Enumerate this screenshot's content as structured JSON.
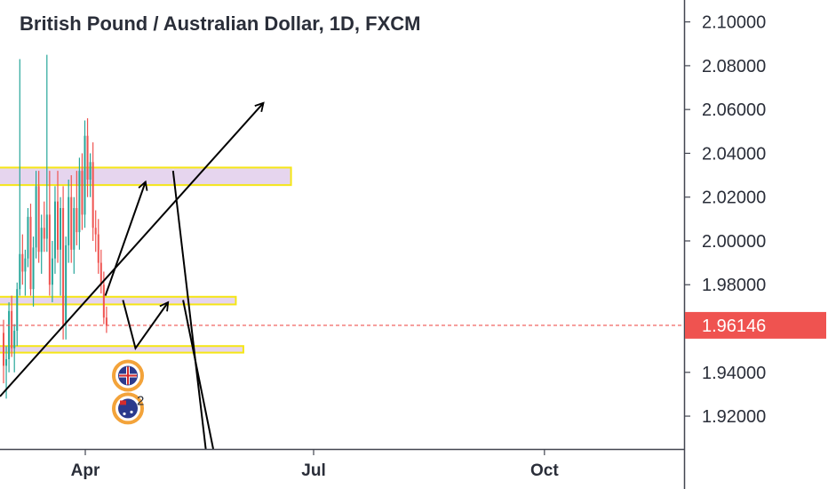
{
  "chart_data": {
    "type": "candlestick",
    "title": "British Pound / Australian Dollar, 1D, FXCM",
    "ylim": [
      1.905,
      2.11
    ],
    "yticks": [
      {
        "value": 2.1,
        "label": "2.10000"
      },
      {
        "value": 2.08,
        "label": "2.08000"
      },
      {
        "value": 2.06,
        "label": "2.06000"
      },
      {
        "value": 2.04,
        "label": "2.04000"
      },
      {
        "value": 2.02,
        "label": "2.02000"
      },
      {
        "value": 2.0,
        "label": "2.00000"
      },
      {
        "value": 1.98,
        "label": "1.98000"
      },
      {
        "value": 1.94,
        "label": "1.94000"
      },
      {
        "value": 1.92,
        "label": "1.92000"
      }
    ],
    "xticks": [
      "Apr",
      "Jul",
      "Oct"
    ],
    "current_price": {
      "value": 1.96146,
      "label": "1.96146",
      "color": "#ef5350"
    },
    "grid": false,
    "colors": {
      "up": "#26a69a",
      "down": "#ef5350",
      "zone_fill": "#e6d5ee",
      "zone_border": "#f5e616",
      "drawing": "#000000"
    },
    "candles": [
      {
        "o": 1.958,
        "h": 1.964,
        "l": 1.935,
        "c": 1.943
      },
      {
        "o": 1.943,
        "h": 1.952,
        "l": 1.928,
        "c": 1.946
      },
      {
        "o": 1.946,
        "h": 1.972,
        "l": 1.94,
        "c": 1.968
      },
      {
        "o": 1.968,
        "h": 1.975,
        "l": 1.947,
        "c": 1.951
      },
      {
        "o": 1.951,
        "h": 1.962,
        "l": 1.94,
        "c": 1.959
      },
      {
        "o": 1.959,
        "h": 1.981,
        "l": 1.952,
        "c": 1.978
      },
      {
        "o": 1.978,
        "h": 2.083,
        "l": 1.975,
        "c": 1.994
      },
      {
        "o": 1.994,
        "h": 2.003,
        "l": 1.98,
        "c": 1.986
      },
      {
        "o": 1.986,
        "h": 1.996,
        "l": 1.975,
        "c": 1.992
      },
      {
        "o": 1.992,
        "h": 2.015,
        "l": 1.988,
        "c": 2.011
      },
      {
        "o": 2.011,
        "h": 2.017,
        "l": 1.975,
        "c": 1.978
      },
      {
        "o": 1.978,
        "h": 2.002,
        "l": 1.97,
        "c": 1.997
      },
      {
        "o": 1.997,
        "h": 2.032,
        "l": 1.992,
        "c": 2.025
      },
      {
        "o": 2.025,
        "h": 2.032,
        "l": 1.99,
        "c": 1.995
      },
      {
        "o": 1.995,
        "h": 2.012,
        "l": 1.985,
        "c": 2.006
      },
      {
        "o": 2.006,
        "h": 2.018,
        "l": 1.995,
        "c": 2.001
      },
      {
        "o": 2.001,
        "h": 2.085,
        "l": 1.995,
        "c": 2.012
      },
      {
        "o": 2.012,
        "h": 2.032,
        "l": 1.975,
        "c": 1.98
      },
      {
        "o": 1.98,
        "h": 2.0,
        "l": 1.972,
        "c": 1.992
      },
      {
        "o": 1.992,
        "h": 2.025,
        "l": 1.985,
        "c": 2.018
      },
      {
        "o": 2.018,
        "h": 2.032,
        "l": 1.99,
        "c": 1.996
      },
      {
        "o": 1.996,
        "h": 2.02,
        "l": 1.975,
        "c": 2.015
      },
      {
        "o": 2.015,
        "h": 2.025,
        "l": 1.955,
        "c": 1.962
      },
      {
        "o": 1.962,
        "h": 2.002,
        "l": 1.955,
        "c": 1.998
      },
      {
        "o": 1.998,
        "h": 2.028,
        "l": 1.99,
        "c": 2.02
      },
      {
        "o": 2.02,
        "h": 2.03,
        "l": 1.99,
        "c": 1.996
      },
      {
        "o": 1.996,
        "h": 2.02,
        "l": 1.985,
        "c": 2.015
      },
      {
        "o": 2.015,
        "h": 2.032,
        "l": 1.998,
        "c": 2.004
      },
      {
        "o": 2.004,
        "h": 2.038,
        "l": 1.996,
        "c": 2.032
      },
      {
        "o": 2.032,
        "h": 2.04,
        "l": 2.005,
        "c": 2.012
      },
      {
        "o": 2.012,
        "h": 2.055,
        "l": 2.006,
        "c": 2.048
      },
      {
        "o": 2.048,
        "h": 2.056,
        "l": 2.02,
        "c": 2.028
      },
      {
        "o": 2.028,
        "h": 2.04,
        "l": 2.02,
        "c": 2.036
      },
      {
        "o": 2.036,
        "h": 2.045,
        "l": 2.0,
        "c": 2.006
      },
      {
        "o": 2.006,
        "h": 2.014,
        "l": 1.995,
        "c": 2.003
      },
      {
        "o": 2.003,
        "h": 2.01,
        "l": 1.985,
        "c": 1.99
      },
      {
        "o": 1.99,
        "h": 1.996,
        "l": 1.976,
        "c": 1.98
      },
      {
        "o": 1.98,
        "h": 1.986,
        "l": 1.962,
        "c": 1.965
      },
      {
        "o": 1.965,
        "h": 1.97,
        "l": 1.958,
        "c": 1.9615
      }
    ],
    "zones": [
      {
        "top": 2.0335,
        "bottom": 2.0255,
        "end": "2021-06-22"
      },
      {
        "top": 1.9745,
        "bottom": 1.971,
        "end": "2021-05-31"
      },
      {
        "top": 1.952,
        "bottom": 1.949,
        "end": "2021-06-03"
      }
    ],
    "trendline": {
      "x1": "2021-02-26",
      "y1": 1.929,
      "x2": "2021-06-11",
      "y2": 2.063
    },
    "price_paths": [
      {
        "points": [
          [
            "2021-04-09",
            1.975
          ],
          [
            "2021-04-25",
            2.027
          ]
        ],
        "arrow": true
      },
      {
        "points": [
          [
            "2021-04-16",
            1.973
          ],
          [
            "2021-04-21",
            1.951
          ],
          [
            "2021-05-04",
            1.972
          ]
        ],
        "arrow": true
      },
      {
        "points": [
          [
            "2021-05-06",
            2.032
          ],
          [
            "2021-05-19",
            1.905
          ]
        ],
        "arrow": false
      },
      {
        "points": [
          [
            "2021-05-10",
            1.973
          ],
          [
            "2021-05-22",
            1.905
          ]
        ],
        "arrow": false
      }
    ],
    "badges": [
      {
        "label": "",
        "value": 1.9385
      },
      {
        "label": "2",
        "value": 1.9235
      }
    ]
  }
}
